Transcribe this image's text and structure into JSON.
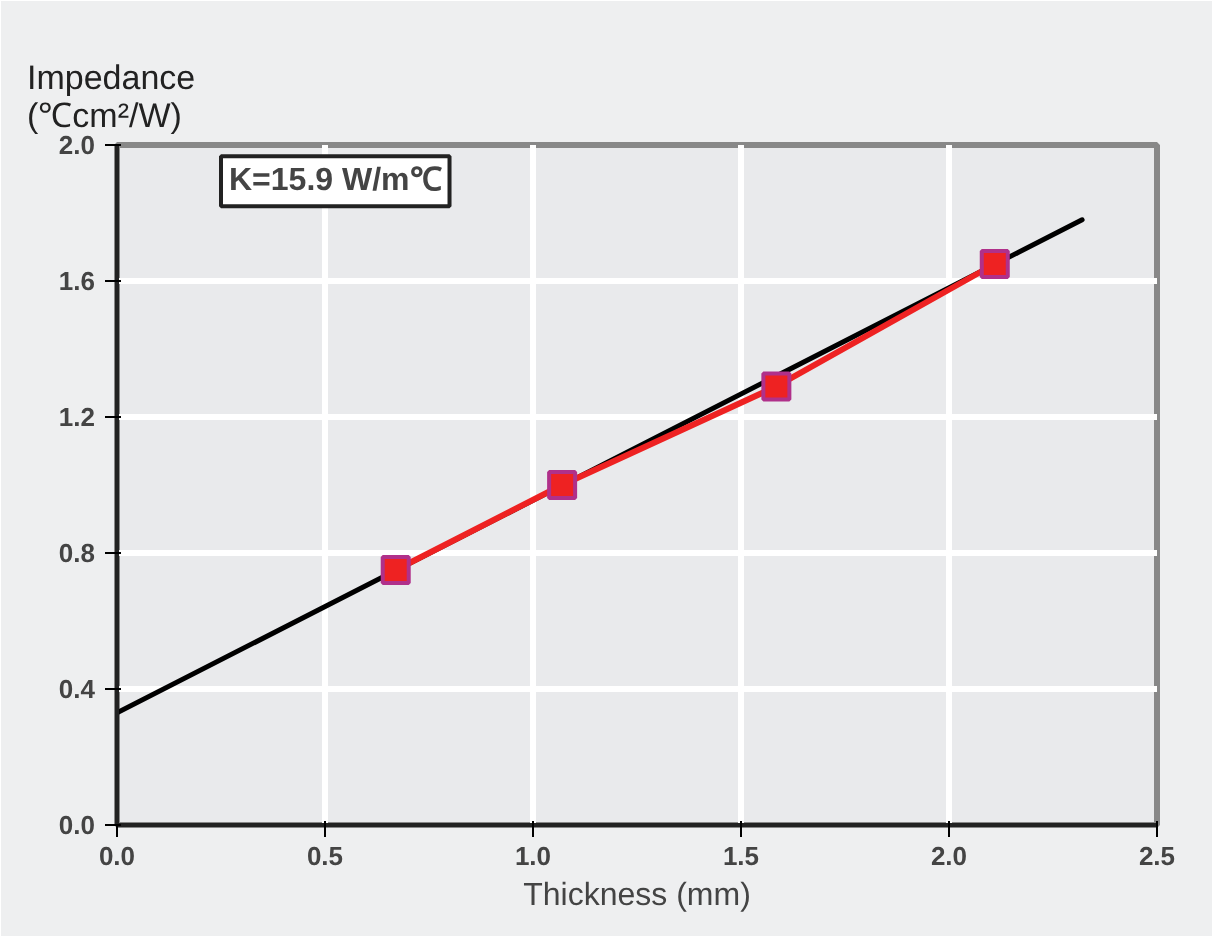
{
  "chart_data": {
    "type": "line",
    "xlabel": "Thickness (mm)",
    "ylabel": "Impedance\n(℃cm²/W)",
    "xlim": [
      0,
      2.5
    ],
    "xticks": [
      {
        "value": 0,
        "label": "0.0"
      },
      0.5,
      {
        "value": 1,
        "label": "1.0"
      },
      1.5,
      {
        "value": 2,
        "label": "2.0"
      },
      2.5
    ],
    "ylim": [
      0,
      2
    ],
    "yticks": [
      {
        "value": 0,
        "label": "0.0"
      },
      0.4,
      0.8,
      1.2,
      1.6,
      {
        "value": 2,
        "label": "2.0"
      }
    ],
    "grid": true,
    "series": [
      {
        "color": "#000000",
        "x": [
          0,
          2.32
        ],
        "values": [
          0.33,
          1.78
        ],
        "marker": "none"
      },
      {
        "color": "#ee2222",
        "x": [
          0.67,
          1.07,
          1.585,
          2.11
        ],
        "values": [
          0.75,
          1.0,
          1.29,
          1.65
        ],
        "marker": "square"
      }
    ],
    "annotations": [
      "K=15.9 W/m℃"
    ]
  }
}
